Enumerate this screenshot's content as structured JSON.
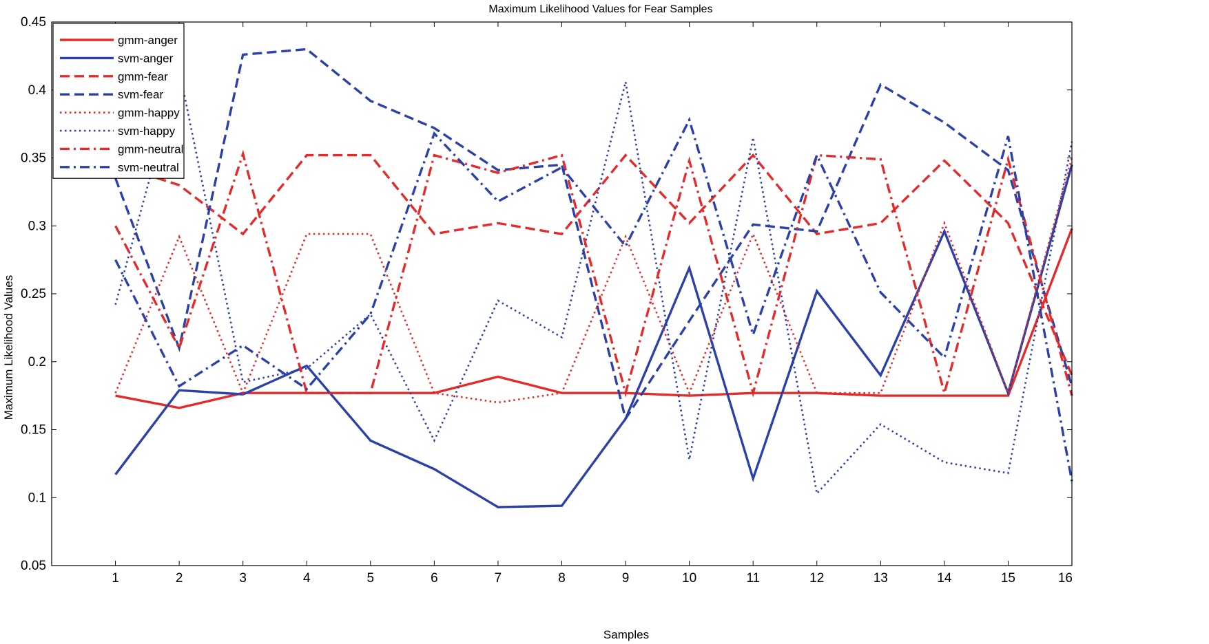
{
  "chart_data": {
    "type": "line",
    "title": "Maximum Likelihood Values for Fear Samples",
    "xlabel": "Samples",
    "ylabel": "Maximum Likelihood Values",
    "xlim": [
      0,
      16
    ],
    "ylim": [
      0.05,
      0.45
    ],
    "grid": false,
    "legend_position": "top-left",
    "x": [
      1,
      2,
      3,
      4,
      5,
      6,
      7,
      8,
      9,
      10,
      11,
      12,
      13,
      14,
      15,
      16
    ],
    "x_ticks": [
      "1",
      "2",
      "3",
      "4",
      "5",
      "6",
      "7",
      "8",
      "9",
      "10",
      "11",
      "12",
      "13",
      "14",
      "15",
      "16"
    ],
    "y_ticks": [
      "0.05",
      "0.1",
      "0.15",
      "0.2",
      "0.25",
      "0.3",
      "0.35",
      "0.4",
      "0.45"
    ],
    "y_tick_values": [
      0.05,
      0.1,
      0.15,
      0.2,
      0.25,
      0.3,
      0.35,
      0.4,
      0.45
    ],
    "series": [
      {
        "name": "gmm-anger",
        "color": "#e52a2a",
        "style": "solid",
        "values": [
          0.175,
          0.166,
          0.177,
          0.177,
          0.177,
          0.177,
          0.189,
          0.177,
          0.177,
          0.175,
          0.177,
          0.177,
          0.175,
          0.175,
          0.175,
          0.298
        ]
      },
      {
        "name": "svm-anger",
        "color": "#2b41a8",
        "style": "solid",
        "values": [
          0.117,
          0.179,
          0.176,
          0.197,
          0.142,
          0.121,
          0.093,
          0.094,
          0.158,
          0.269,
          0.114,
          0.252,
          0.19,
          0.296,
          0.177,
          0.345
        ]
      },
      {
        "name": "gmm-fear",
        "color": "#e52a2a",
        "style": "dashed",
        "values": [
          0.345,
          0.33,
          0.294,
          0.352,
          0.352,
          0.294,
          0.302,
          0.294,
          0.352,
          0.302,
          0.352,
          0.294,
          0.302,
          0.348,
          0.302,
          0.19
        ]
      },
      {
        "name": "svm-fear",
        "color": "#2b41a8",
        "style": "dashed",
        "values": [
          0.335,
          0.21,
          0.426,
          0.43,
          0.392,
          0.372,
          0.341,
          0.345,
          0.158,
          0.23,
          0.301,
          0.296,
          0.404,
          0.376,
          0.341,
          0.182
        ]
      },
      {
        "name": "gmm-happy",
        "color": "#e52a2a",
        "style": "dotted",
        "values": [
          0.177,
          0.292,
          0.177,
          0.294,
          0.294,
          0.177,
          0.17,
          0.177,
          0.292,
          0.177,
          0.294,
          0.177,
          0.177,
          0.302,
          0.177,
          0.35
        ]
      },
      {
        "name": "svm-happy",
        "color": "#2b41a8",
        "style": "dotted",
        "values": [
          0.242,
          0.415,
          0.185,
          0.195,
          0.235,
          0.142,
          0.245,
          0.218,
          0.406,
          0.128,
          0.365,
          0.103,
          0.154,
          0.126,
          0.118,
          0.362
        ]
      },
      {
        "name": "gmm-neutral",
        "color": "#e52a2a",
        "style": "dashdot",
        "values": [
          0.3,
          0.21,
          0.353,
          0.177,
          0.177,
          0.352,
          0.339,
          0.352,
          0.177,
          0.348,
          0.177,
          0.352,
          0.349,
          0.177,
          0.349,
          0.175
        ]
      },
      {
        "name": "svm-neutral",
        "color": "#2b41a8",
        "style": "dashdot",
        "values": [
          0.275,
          0.182,
          0.212,
          0.18,
          0.235,
          0.368,
          0.318,
          0.343,
          0.285,
          0.378,
          0.22,
          0.352,
          0.251,
          0.203,
          0.366,
          0.112
        ]
      }
    ]
  }
}
